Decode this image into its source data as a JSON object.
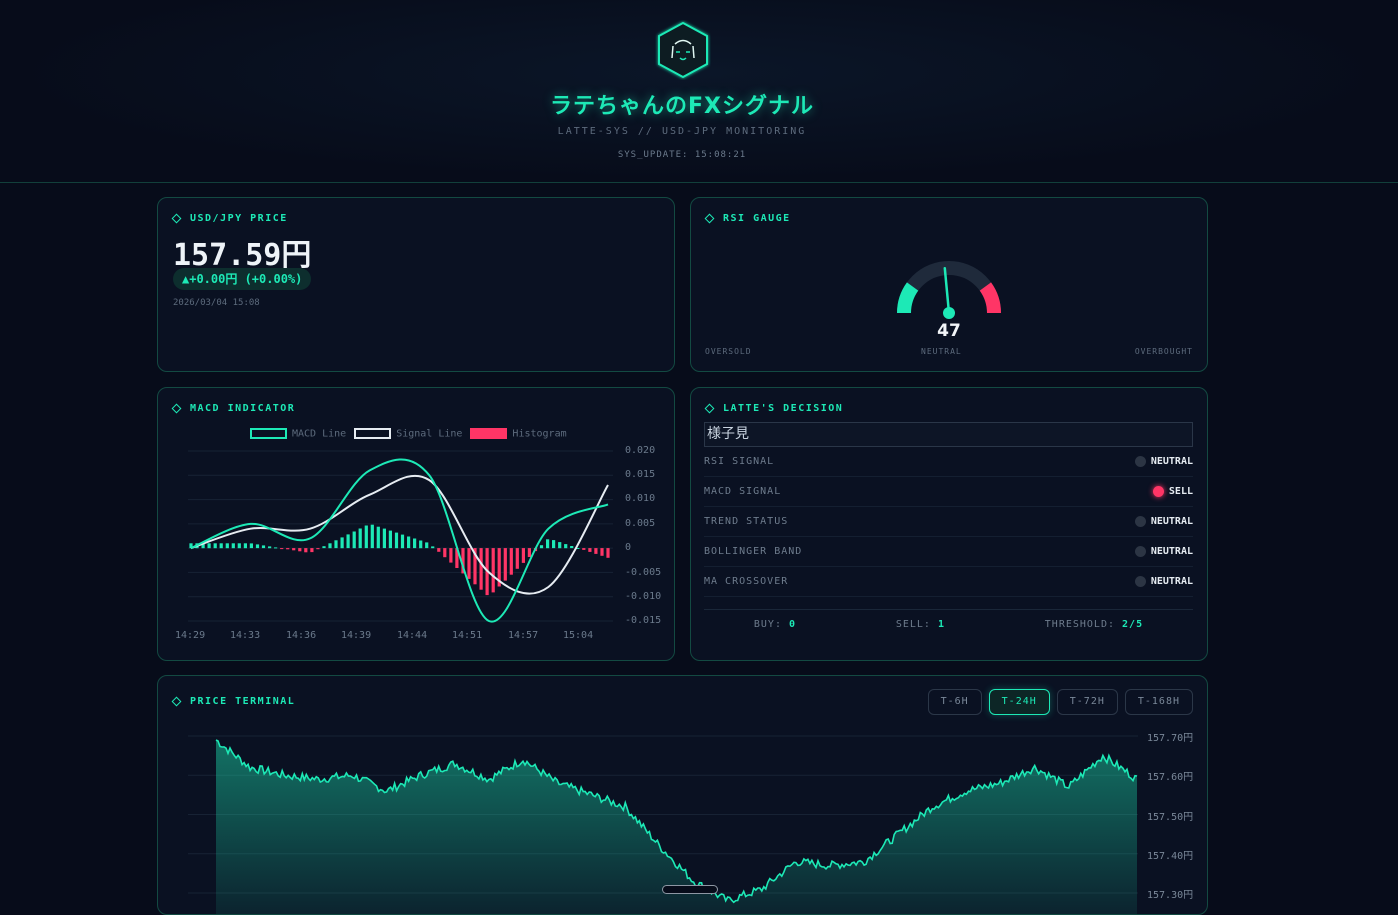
{
  "header": {
    "title": "ラテちゃんのFXシグナル",
    "subtitle": "LATTE-SYS // USD-JPY MONITORING",
    "update": "SYS_UPDATE: 15:08:21",
    "logo_icon": "latte-face-hexagon-icon"
  },
  "colors": {
    "accent": "#1de9b6",
    "sell": "#ff3566",
    "background": "#070c1a"
  },
  "price_card": {
    "title": "USD/JPY PRICE",
    "price": "157.59円",
    "change": "▲+0.00円 (+0.00%)",
    "date": "2026/03/04 15:08"
  },
  "rsi_card": {
    "title": "RSI GAUGE",
    "value": "47",
    "value_num": 47,
    "label_left": "OVERSOLD",
    "label_center": "NEUTRAL",
    "label_right": "OVERBOUGHT"
  },
  "macd_card": {
    "title": "MACD INDICATOR",
    "legend": {
      "macd": "MACD Line",
      "signal": "Signal Line",
      "histogram": "Histogram"
    },
    "y_ticks": [
      "0.020",
      "0.015",
      "0.010",
      "0.005",
      "0",
      "-0.005",
      "-0.010",
      "-0.015"
    ],
    "x_ticks": [
      "14:29",
      "14:33",
      "14:36",
      "14:39",
      "14:44",
      "14:51",
      "14:57",
      "15:04"
    ]
  },
  "decision_card": {
    "title": "LATTE'S DECISION",
    "decision": "様子見",
    "signals": [
      {
        "name": "RSI SIGNAL",
        "value": "NEUTRAL",
        "state": "neutral"
      },
      {
        "name": "MACD SIGNAL",
        "value": "SELL",
        "state": "sell"
      },
      {
        "name": "TREND STATUS",
        "value": "NEUTRAL",
        "state": "neutral"
      },
      {
        "name": "BOLLINGER BAND",
        "value": "NEUTRAL",
        "state": "neutral"
      },
      {
        "name": "MA CROSSOVER",
        "value": "NEUTRAL",
        "state": "neutral"
      }
    ],
    "tally": {
      "buy_label": "BUY:",
      "buy": "0",
      "sell_label": "SELL:",
      "sell": "1",
      "threshold_label": "THRESHOLD:",
      "threshold": "2/5"
    }
  },
  "terminal_card": {
    "title": "PRICE TERMINAL",
    "ranges": [
      "T-6H",
      "T-24H",
      "T-72H",
      "T-168H"
    ],
    "active_range": "T-24H",
    "y_ticks": [
      "157.70円",
      "157.60円",
      "157.50円",
      "157.40円",
      "157.30円"
    ]
  },
  "chart_data": [
    {
      "type": "line",
      "title": "MACD INDICATOR",
      "x": [
        "14:29",
        "14:33",
        "14:36",
        "14:39",
        "14:44",
        "14:51",
        "14:57",
        "15:04"
      ],
      "ylim": [
        -0.015,
        0.02
      ],
      "series": [
        {
          "name": "MACD Line",
          "values": [
            0.0,
            0.005,
            0.002,
            0.016,
            0.015,
            -0.015,
            0.004,
            0.009
          ]
        },
        {
          "name": "Signal Line",
          "values": [
            0.0,
            0.004,
            0.004,
            0.011,
            0.014,
            -0.005,
            -0.008,
            0.013
          ]
        },
        {
          "name": "Histogram",
          "values": [
            0.001,
            0.001,
            -0.001,
            0.005,
            0.001,
            -0.01,
            0.002,
            -0.002
          ]
        }
      ]
    },
    {
      "type": "area",
      "title": "PRICE TERMINAL",
      "ylim": [
        157.3,
        157.7
      ],
      "series": [
        {
          "name": "USD/JPY",
          "values": [
            157.69,
            157.62,
            157.6,
            157.59,
            157.6,
            157.56,
            157.6,
            157.63,
            157.59,
            157.64,
            157.58,
            157.55,
            157.52,
            157.42,
            157.33,
            157.28,
            157.31,
            157.38,
            157.37,
            157.38,
            157.45,
            157.52,
            157.56,
            157.58,
            157.62,
            157.57,
            157.65,
            157.59
          ]
        }
      ]
    }
  ]
}
